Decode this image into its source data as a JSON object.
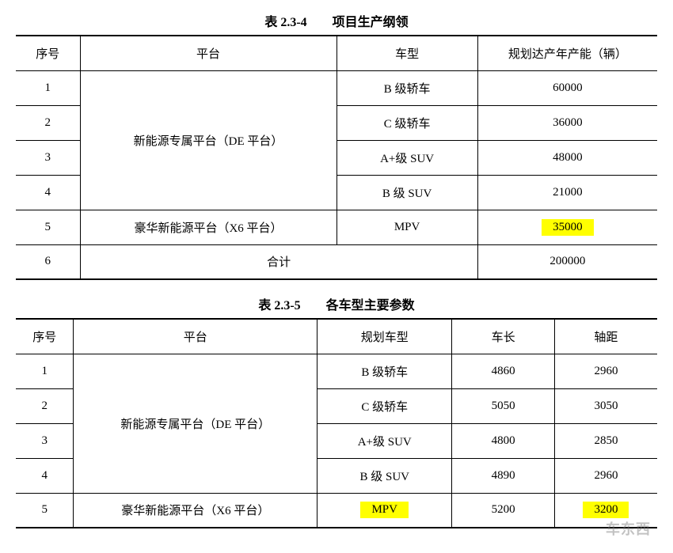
{
  "highlight_color": "#ffff00",
  "table1": {
    "title": "表 2.3-4　　项目生产纲领",
    "headers": {
      "seq": "序号",
      "platform": "平台",
      "type": "车型",
      "capacity": "规划达产年产能（辆）"
    },
    "platforms": {
      "de": "新能源专属平台（DE 平台）",
      "x6": "豪华新能源平台（X6 平台）"
    },
    "rows": [
      {
        "seq": "1",
        "type": "B 级轿车",
        "capacity": "60000",
        "highlight": false
      },
      {
        "seq": "2",
        "type": "C 级轿车",
        "capacity": "36000",
        "highlight": false
      },
      {
        "seq": "3",
        "type": "A+级 SUV",
        "capacity": "48000",
        "highlight": false
      },
      {
        "seq": "4",
        "type": "B 级 SUV",
        "capacity": "21000",
        "highlight": false
      },
      {
        "seq": "5",
        "type": "MPV",
        "capacity": "35000",
        "highlight": true
      }
    ],
    "total": {
      "seq": "6",
      "label": "合计",
      "capacity": "200000"
    }
  },
  "table2": {
    "title": "表 2.3-5　　各车型主要参数",
    "headers": {
      "seq": "序号",
      "platform": "平台",
      "type": "规划车型",
      "length": "车长",
      "wheelbase": "轴距"
    },
    "platforms": {
      "de": "新能源专属平台（DE 平台）",
      "x6": "豪华新能源平台（X6 平台）"
    },
    "rows": [
      {
        "seq": "1",
        "type": "B 级轿车",
        "length": "4860",
        "wheelbase": "2960",
        "highlight_type": false,
        "highlight_wb": false
      },
      {
        "seq": "2",
        "type": "C 级轿车",
        "length": "5050",
        "wheelbase": "3050",
        "highlight_type": false,
        "highlight_wb": false
      },
      {
        "seq": "3",
        "type": "A+级 SUV",
        "length": "4800",
        "wheelbase": "2850",
        "highlight_type": false,
        "highlight_wb": false
      },
      {
        "seq": "4",
        "type": "B 级 SUV",
        "length": "4890",
        "wheelbase": "2960",
        "highlight_type": false,
        "highlight_wb": false
      },
      {
        "seq": "5",
        "type": "MPV",
        "length": "5200",
        "wheelbase": "3200",
        "highlight_type": true,
        "highlight_wb": true
      }
    ]
  },
  "watermark": "车东西"
}
